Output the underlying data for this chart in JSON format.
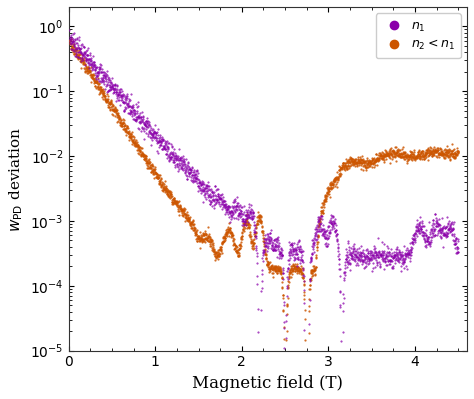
{
  "xlabel": "Magnetic field (T)",
  "ylabel": "$w_{\\mathrm{PD}}$ deviation",
  "xlim": [
    0,
    4.6
  ],
  "ylim": [
    1e-05,
    2.0
  ],
  "color_n1": "#8B00AA",
  "color_n2": "#CC5500",
  "legend_n1": "$n_1$",
  "legend_n2": "$n_2 < n_1$",
  "bg_color": "#FFFFFF",
  "fig_bg": "#FFFFFF"
}
